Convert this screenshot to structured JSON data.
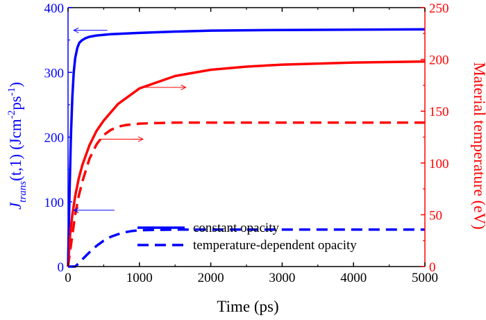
{
  "chart_data": {
    "type": "line",
    "xlabel": "Time (ps)",
    "ylabel_left": {
      "symbol": "J",
      "subscript": "trans",
      "args": "(t,1)",
      "unit_prefix": "(Jcm",
      "unit_exp1": "-2",
      "unit_mid": "ps",
      "unit_exp2": "-1",
      "unit_suffix": ")"
    },
    "ylabel_right": "Material temperature (eV)",
    "xlim": [
      0,
      5000
    ],
    "ylim_left": [
      0,
      400
    ],
    "ylim_right": [
      0,
      250
    ],
    "xticks": [
      "0",
      "1000",
      "2000",
      "3000",
      "4000",
      "5000"
    ],
    "yticks_left": [
      "0",
      "100",
      "200",
      "300",
      "400"
    ],
    "yticks_right": [
      "0",
      "50",
      "100",
      "150",
      "200",
      "250"
    ],
    "colors": {
      "left": "#0000ff",
      "right": "#ff0000",
      "axis": "#000000"
    },
    "legend": {
      "placement": "lower-right",
      "entries": [
        {
          "label": "constant opacity",
          "style": "solid"
        },
        {
          "label": "temperature-dependent opacity",
          "style": "dashed"
        }
      ]
    },
    "series": [
      {
        "axis": "left",
        "style": "solid",
        "color": "#0000ff",
        "x": [
          0,
          20,
          40,
          60,
          80,
          100,
          130,
          160,
          200,
          250,
          300,
          400,
          600,
          1000,
          1500,
          2000,
          3000,
          4000,
          5000
        ],
        "y": [
          0,
          110,
          200,
          262,
          300,
          322,
          338,
          346,
          350,
          353,
          355,
          357,
          359,
          361,
          363,
          364.5,
          365.5,
          366,
          366.5
        ]
      },
      {
        "axis": "left",
        "style": "dashed",
        "color": "#0000ff",
        "x": [
          0,
          100,
          150,
          200,
          300,
          400,
          500,
          600,
          700,
          800,
          900,
          1000,
          1200,
          1500,
          2000,
          3000,
          4000,
          5000
        ],
        "y": [
          0,
          0,
          5,
          11,
          22,
          32,
          40,
          46,
          50,
          53,
          55,
          56,
          56.5,
          57,
          57,
          57,
          57,
          57
        ]
      },
      {
        "axis": "right",
        "style": "solid",
        "color": "#ff0000",
        "x": [
          0,
          30,
          60,
          100,
          150,
          200,
          300,
          400,
          500,
          700,
          1000,
          1500,
          2000,
          2500,
          3000,
          4000,
          5000
        ],
        "y": [
          0,
          32,
          50,
          68,
          85,
          98,
          117,
          131,
          141,
          157,
          172,
          184,
          190,
          193,
          195,
          197,
          198
        ]
      },
      {
        "axis": "right",
        "style": "dashed",
        "color": "#ff0000",
        "x": [
          0,
          50,
          100,
          150,
          200,
          300,
          400,
          500,
          600,
          700,
          800,
          1000,
          1200,
          1500,
          2000,
          3000,
          4000,
          5000
        ],
        "y": [
          0,
          25,
          50,
          68,
          82,
          104,
          118,
          127,
          132,
          135,
          136.5,
          138,
          138.5,
          139,
          139,
          139,
          139,
          139
        ]
      }
    ],
    "annotations": [
      {
        "type": "arrow",
        "color": "#0000ff",
        "direction": "left",
        "x_from": 550,
        "x_to": 80,
        "y": 365,
        "axis": "left"
      },
      {
        "type": "arrow",
        "color": "#ff0000",
        "direction": "right",
        "x_from": 1050,
        "x_to": 1650,
        "y": 173,
        "axis": "right"
      },
      {
        "type": "arrow",
        "color": "#ff0000",
        "direction": "right",
        "x_from": 450,
        "x_to": 1050,
        "y": 123,
        "axis": "right"
      },
      {
        "type": "arrow",
        "color": "#0000ff",
        "direction": "left",
        "x_from": 650,
        "x_to": 80,
        "y": 87,
        "axis": "left"
      }
    ]
  }
}
